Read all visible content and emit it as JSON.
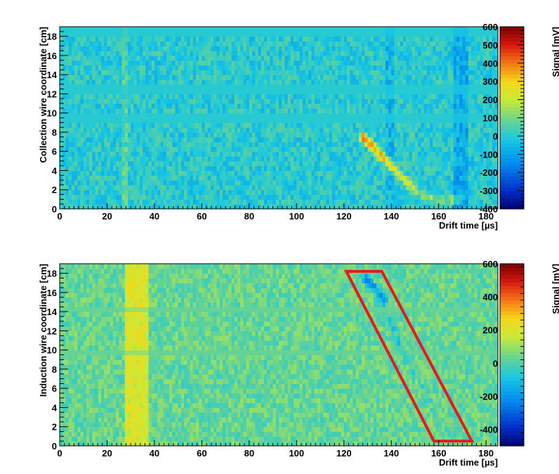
{
  "chart_data": [
    {
      "type": "heatmap",
      "xlabel": "Drift time [µs]",
      "ylabel": "Collection wire coordinate [cm]",
      "colorbar_label": "Signal [mV]",
      "xlim": [
        0,
        185
      ],
      "ylim": [
        0,
        19
      ],
      "zlim": [
        -400,
        600
      ],
      "x_ticks": [
        "0",
        "20",
        "40",
        "60",
        "80",
        "100",
        "120",
        "140",
        "160",
        "180"
      ],
      "y_ticks": [
        "0",
        "2",
        "4",
        "6",
        "8",
        "10",
        "12",
        "14",
        "16",
        "18"
      ],
      "z_ticks": [
        "-400",
        "-300",
        "-200",
        "-100",
        "0",
        "100",
        "200",
        "300",
        "400",
        "500",
        "600"
      ],
      "background_level": 0,
      "quiet_wire_bands": [
        {
          "y_from": 18.0,
          "y_to": 19.0
        },
        {
          "y_from": 12.0,
          "y_to": 13.0
        },
        {
          "y_from": 9.0,
          "y_to": 10.0
        }
      ],
      "vertical_bands": [
        {
          "x_from": 26,
          "x_to": 29,
          "level": 60
        },
        {
          "x_from": 137,
          "x_to": 141,
          "level": -60
        },
        {
          "x_from": 166,
          "x_to": 172,
          "level": -90
        }
      ],
      "track": [
        {
          "x": 128,
          "y": 7.5,
          "value": 500
        },
        {
          "x": 130,
          "y": 7.0,
          "value": 470
        },
        {
          "x": 132,
          "y": 6.5,
          "value": 440
        },
        {
          "x": 134,
          "y": 6.0,
          "value": 400
        },
        {
          "x": 136,
          "y": 5.5,
          "value": 380
        },
        {
          "x": 138,
          "y": 5.0,
          "value": 370
        },
        {
          "x": 140,
          "y": 4.5,
          "value": 360
        },
        {
          "x": 142,
          "y": 4.0,
          "value": 340
        },
        {
          "x": 144,
          "y": 3.5,
          "value": 300
        },
        {
          "x": 146,
          "y": 3.0,
          "value": 270
        },
        {
          "x": 148,
          "y": 2.5,
          "value": 250
        },
        {
          "x": 150,
          "y": 2.0,
          "value": 230
        },
        {
          "x": 153,
          "y": 1.5,
          "value": 220
        },
        {
          "x": 157,
          "y": 1.0,
          "value": 210
        },
        {
          "x": 161,
          "y": 1.0,
          "value": 200
        },
        {
          "x": 165,
          "y": 1.0,
          "value": 190
        },
        {
          "x": 168,
          "y": 1.0,
          "value": 160
        }
      ]
    },
    {
      "type": "heatmap",
      "xlabel": "Drift time [µs]",
      "ylabel": "Induction wire coordinate [cm]",
      "colorbar_label": "Signal [mV]",
      "xlim": [
        0,
        185
      ],
      "ylim": [
        0,
        19
      ],
      "zlim": [
        -500,
        600
      ],
      "x_ticks": [
        "0",
        "20",
        "40",
        "60",
        "80",
        "100",
        "120",
        "140",
        "160",
        "180"
      ],
      "y_ticks": [
        "0",
        "2",
        "4",
        "6",
        "8",
        "10",
        "12",
        "14",
        "16",
        "18"
      ],
      "z_ticks": [
        "-400",
        "-200",
        "0",
        "200",
        "400",
        "600"
      ],
      "background_level": 30,
      "quiet_wire_bands": [
        {
          "y_from": 14.0,
          "y_to": 14.5
        },
        {
          "y_from": 9.5,
          "y_to": 10.0
        }
      ],
      "vertical_bands": [
        {
          "x_from": 27,
          "x_to": 38,
          "level": 170
        }
      ],
      "track": [
        {
          "x": 129,
          "y": 17.5,
          "value": -300
        },
        {
          "x": 131,
          "y": 17.0,
          "value": -280
        },
        {
          "x": 133,
          "y": 16.5,
          "value": -250
        },
        {
          "x": 135,
          "y": 16.0,
          "value": -230
        },
        {
          "x": 136,
          "y": 15.5,
          "value": -220
        },
        {
          "x": 137,
          "y": 15.0,
          "value": -200
        },
        {
          "x": 139,
          "y": 13.0,
          "value": -120
        },
        {
          "x": 141,
          "y": 12.0,
          "value": -140
        },
        {
          "x": 143,
          "y": 11.0,
          "value": -160
        },
        {
          "x": 145,
          "y": 10.0,
          "value": -100
        },
        {
          "x": 147,
          "y": 9.0,
          "value": -100
        },
        {
          "x": 150,
          "y": 7.5,
          "value": -90
        },
        {
          "x": 153,
          "y": 6.0,
          "value": -80
        },
        {
          "x": 156,
          "y": 4.5,
          "value": -70
        },
        {
          "x": 159,
          "y": 3.0,
          "value": -60
        },
        {
          "x": 162,
          "y": 1.5,
          "value": -50
        }
      ],
      "annotation_region": {
        "color": "#e8181e",
        "vertices": [
          [
            121,
            18.2
          ],
          [
            136,
            18.2
          ],
          [
            174,
            0.5
          ],
          [
            158,
            0.5
          ]
        ]
      }
    }
  ]
}
